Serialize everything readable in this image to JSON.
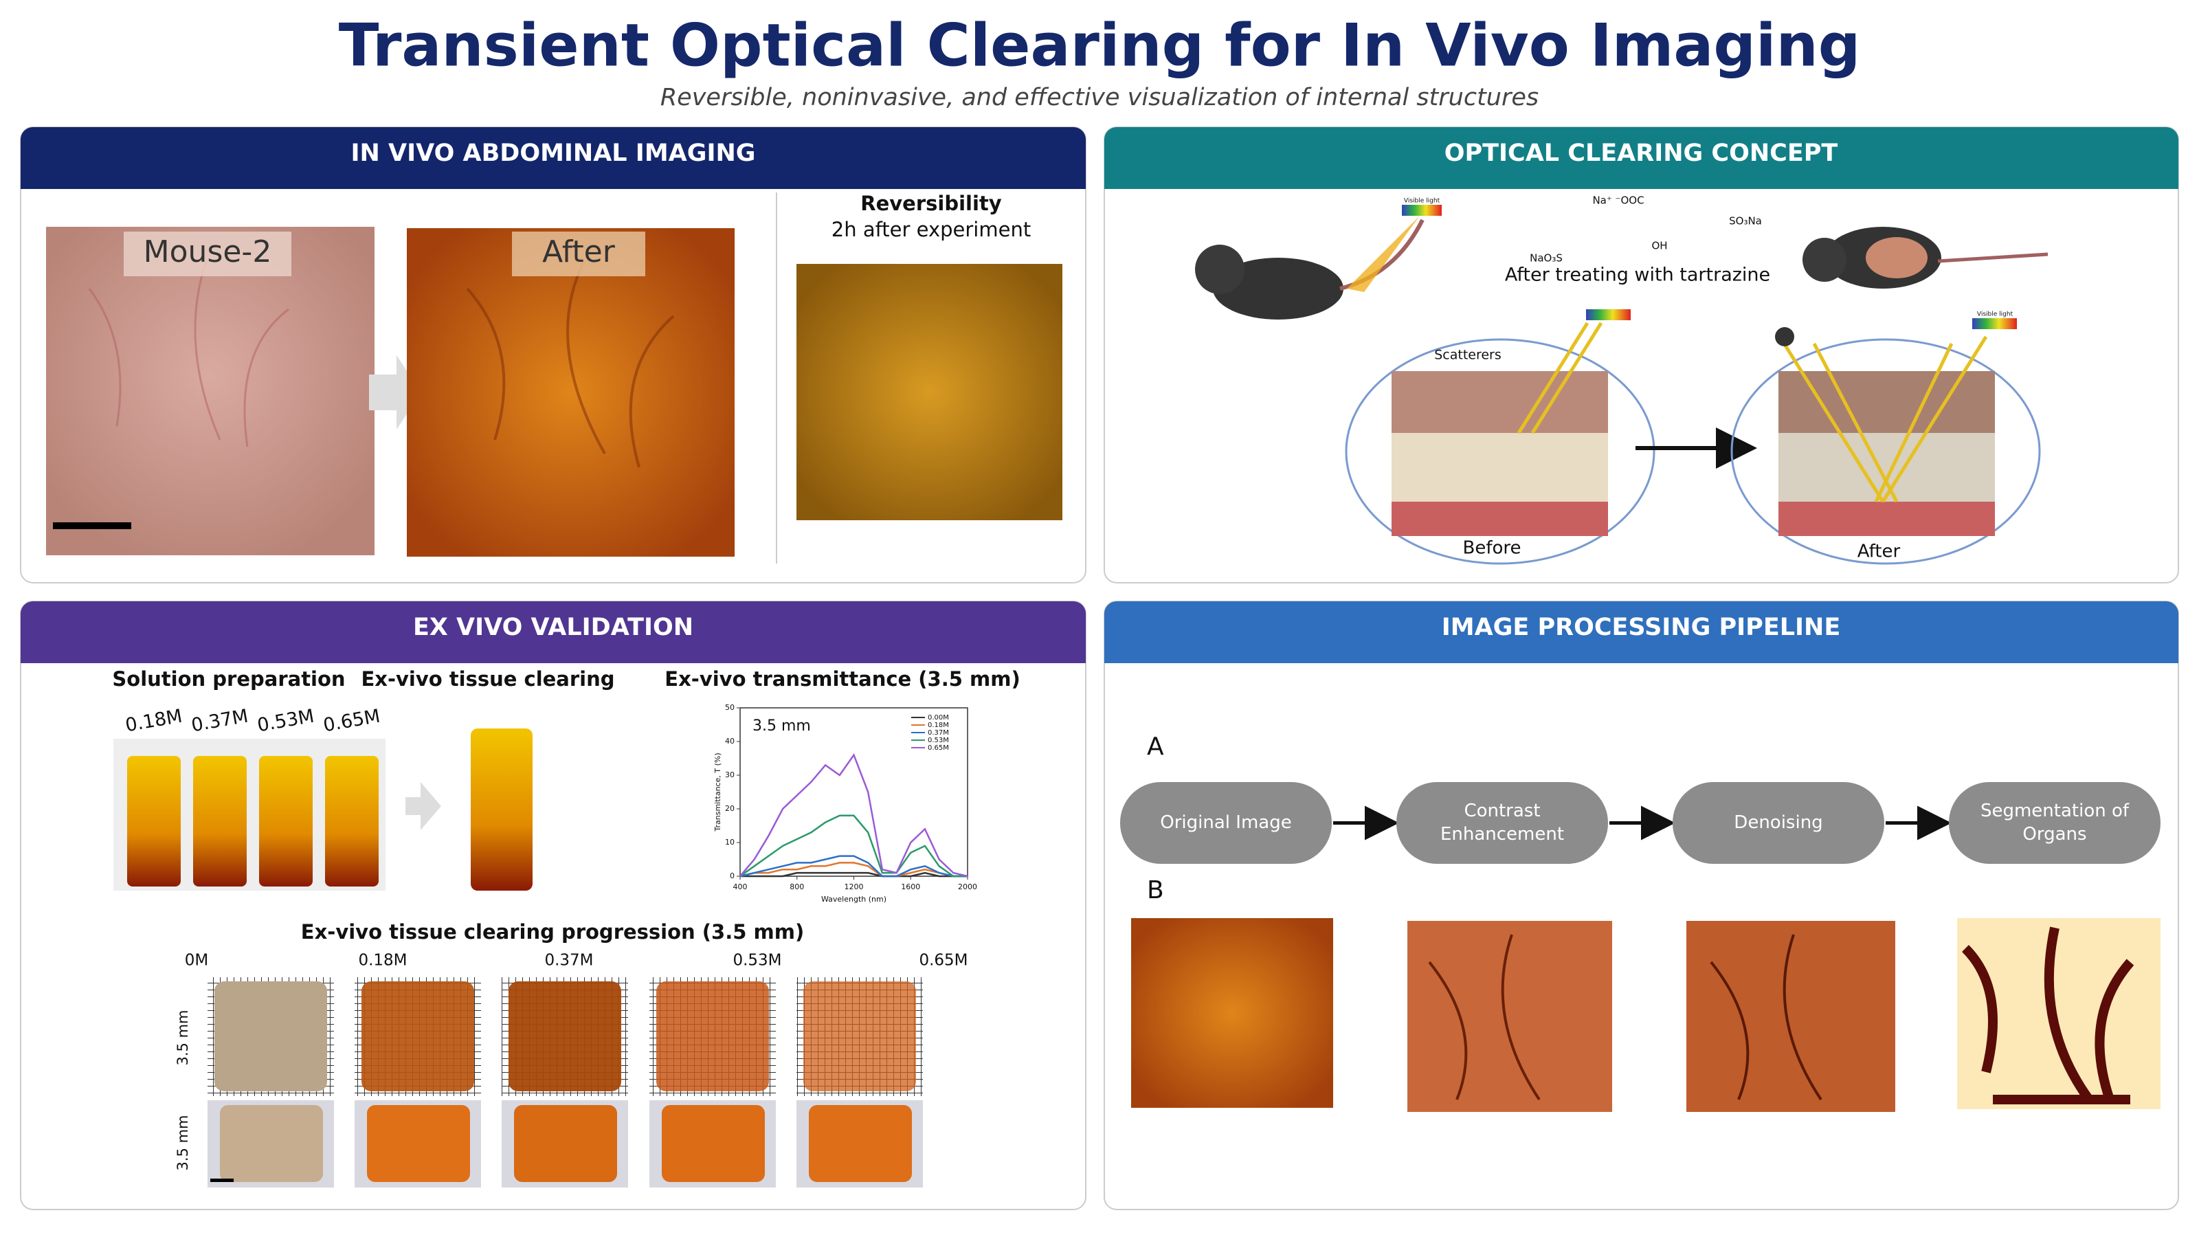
{
  "header": {
    "title": "Transient Optical Clearing for In Vivo Imaging",
    "subtitle": "Reversible, noninvasive, and effective visualization of internal structures"
  },
  "in_vivo": {
    "title": "IN VIVO ABDOMINAL IMAGING",
    "image_labels": [
      "Mouse-2",
      "After"
    ],
    "reversibility_title": "Reversibility",
    "reversibility_note": "2h after experiment"
  },
  "concept": {
    "title": "OPTICAL CLEARING CONCEPT",
    "treated": "After treating with tartrazine",
    "scatterers": "Scatterers",
    "before": "Before",
    "after": "After",
    "visible_light": "Visible light",
    "chem_labels": [
      "Na⁺ ⁻OOC",
      "NaO₃S",
      "SO₃Na",
      "OH"
    ]
  },
  "ex_vivo": {
    "title": "EX VIVO VALIDATION",
    "solution_title": "Solution preparation",
    "tissue_title": "Ex-vivo tissue clearing",
    "transmittance_title": "Ex-vivo transmittance (3.5 mm)",
    "concentrations": [
      "0.18M",
      "0.37M",
      "0.53M",
      "0.65M"
    ],
    "chart": {
      "type": "line",
      "annotation": "3.5 mm",
      "x_label": "Wavelength (nm)",
      "y_label": "Transmittance, T (%)",
      "x": [
        400,
        500,
        600,
        700,
        800,
        900,
        1000,
        1100,
        1200,
        1300,
        1400,
        1500,
        1600,
        1700,
        1800,
        1900,
        2000
      ],
      "xlim": [
        400,
        2000
      ],
      "xticks": [
        400,
        800,
        1200,
        1600,
        2000
      ],
      "ylim": [
        0,
        50
      ],
      "yticks": [
        0,
        10,
        20,
        30,
        40,
        50
      ],
      "series": [
        {
          "name": "0.00M",
          "color": "#333333",
          "values": [
            0,
            0,
            0,
            0,
            1,
            1,
            1,
            1,
            1,
            1,
            0,
            0,
            0,
            1,
            0,
            0,
            0
          ]
        },
        {
          "name": "0.18M",
          "color": "#e0762b",
          "values": [
            0,
            1,
            1,
            2,
            2,
            3,
            3,
            4,
            4,
            3,
            0,
            0,
            1,
            2,
            1,
            0,
            0
          ]
        },
        {
          "name": "0.37M",
          "color": "#2a6fc9",
          "values": [
            0,
            1,
            2,
            3,
            4,
            4,
            5,
            6,
            6,
            4,
            0,
            0,
            2,
            3,
            1,
            0,
            0
          ]
        },
        {
          "name": "0.53M",
          "color": "#2a9a6a",
          "values": [
            0,
            3,
            6,
            9,
            11,
            13,
            16,
            18,
            18,
            13,
            1,
            1,
            7,
            9,
            3,
            0,
            0
          ]
        },
        {
          "name": "0.65M",
          "color": "#9a5bd6",
          "values": [
            0,
            5,
            12,
            20,
            24,
            28,
            33,
            30,
            36,
            25,
            2,
            1,
            10,
            14,
            5,
            1,
            0
          ]
        }
      ]
    },
    "progression_title": "Ex-vivo tissue clearing progression (3.5 mm)",
    "progression_labels": [
      "0M",
      "0.18M",
      "0.37M",
      "0.53M",
      "0.65M"
    ],
    "row_labels": [
      "3.5 mm",
      "3.5 mm"
    ]
  },
  "pipeline": {
    "title": "IMAGE PROCESSING PIPELINE",
    "label_a": "A",
    "label_b": "B",
    "steps": [
      [
        "Original Image"
      ],
      [
        "Contrast",
        "Enhancement"
      ],
      [
        "Denoising"
      ],
      [
        "Segmentation of",
        "Organs"
      ]
    ]
  }
}
